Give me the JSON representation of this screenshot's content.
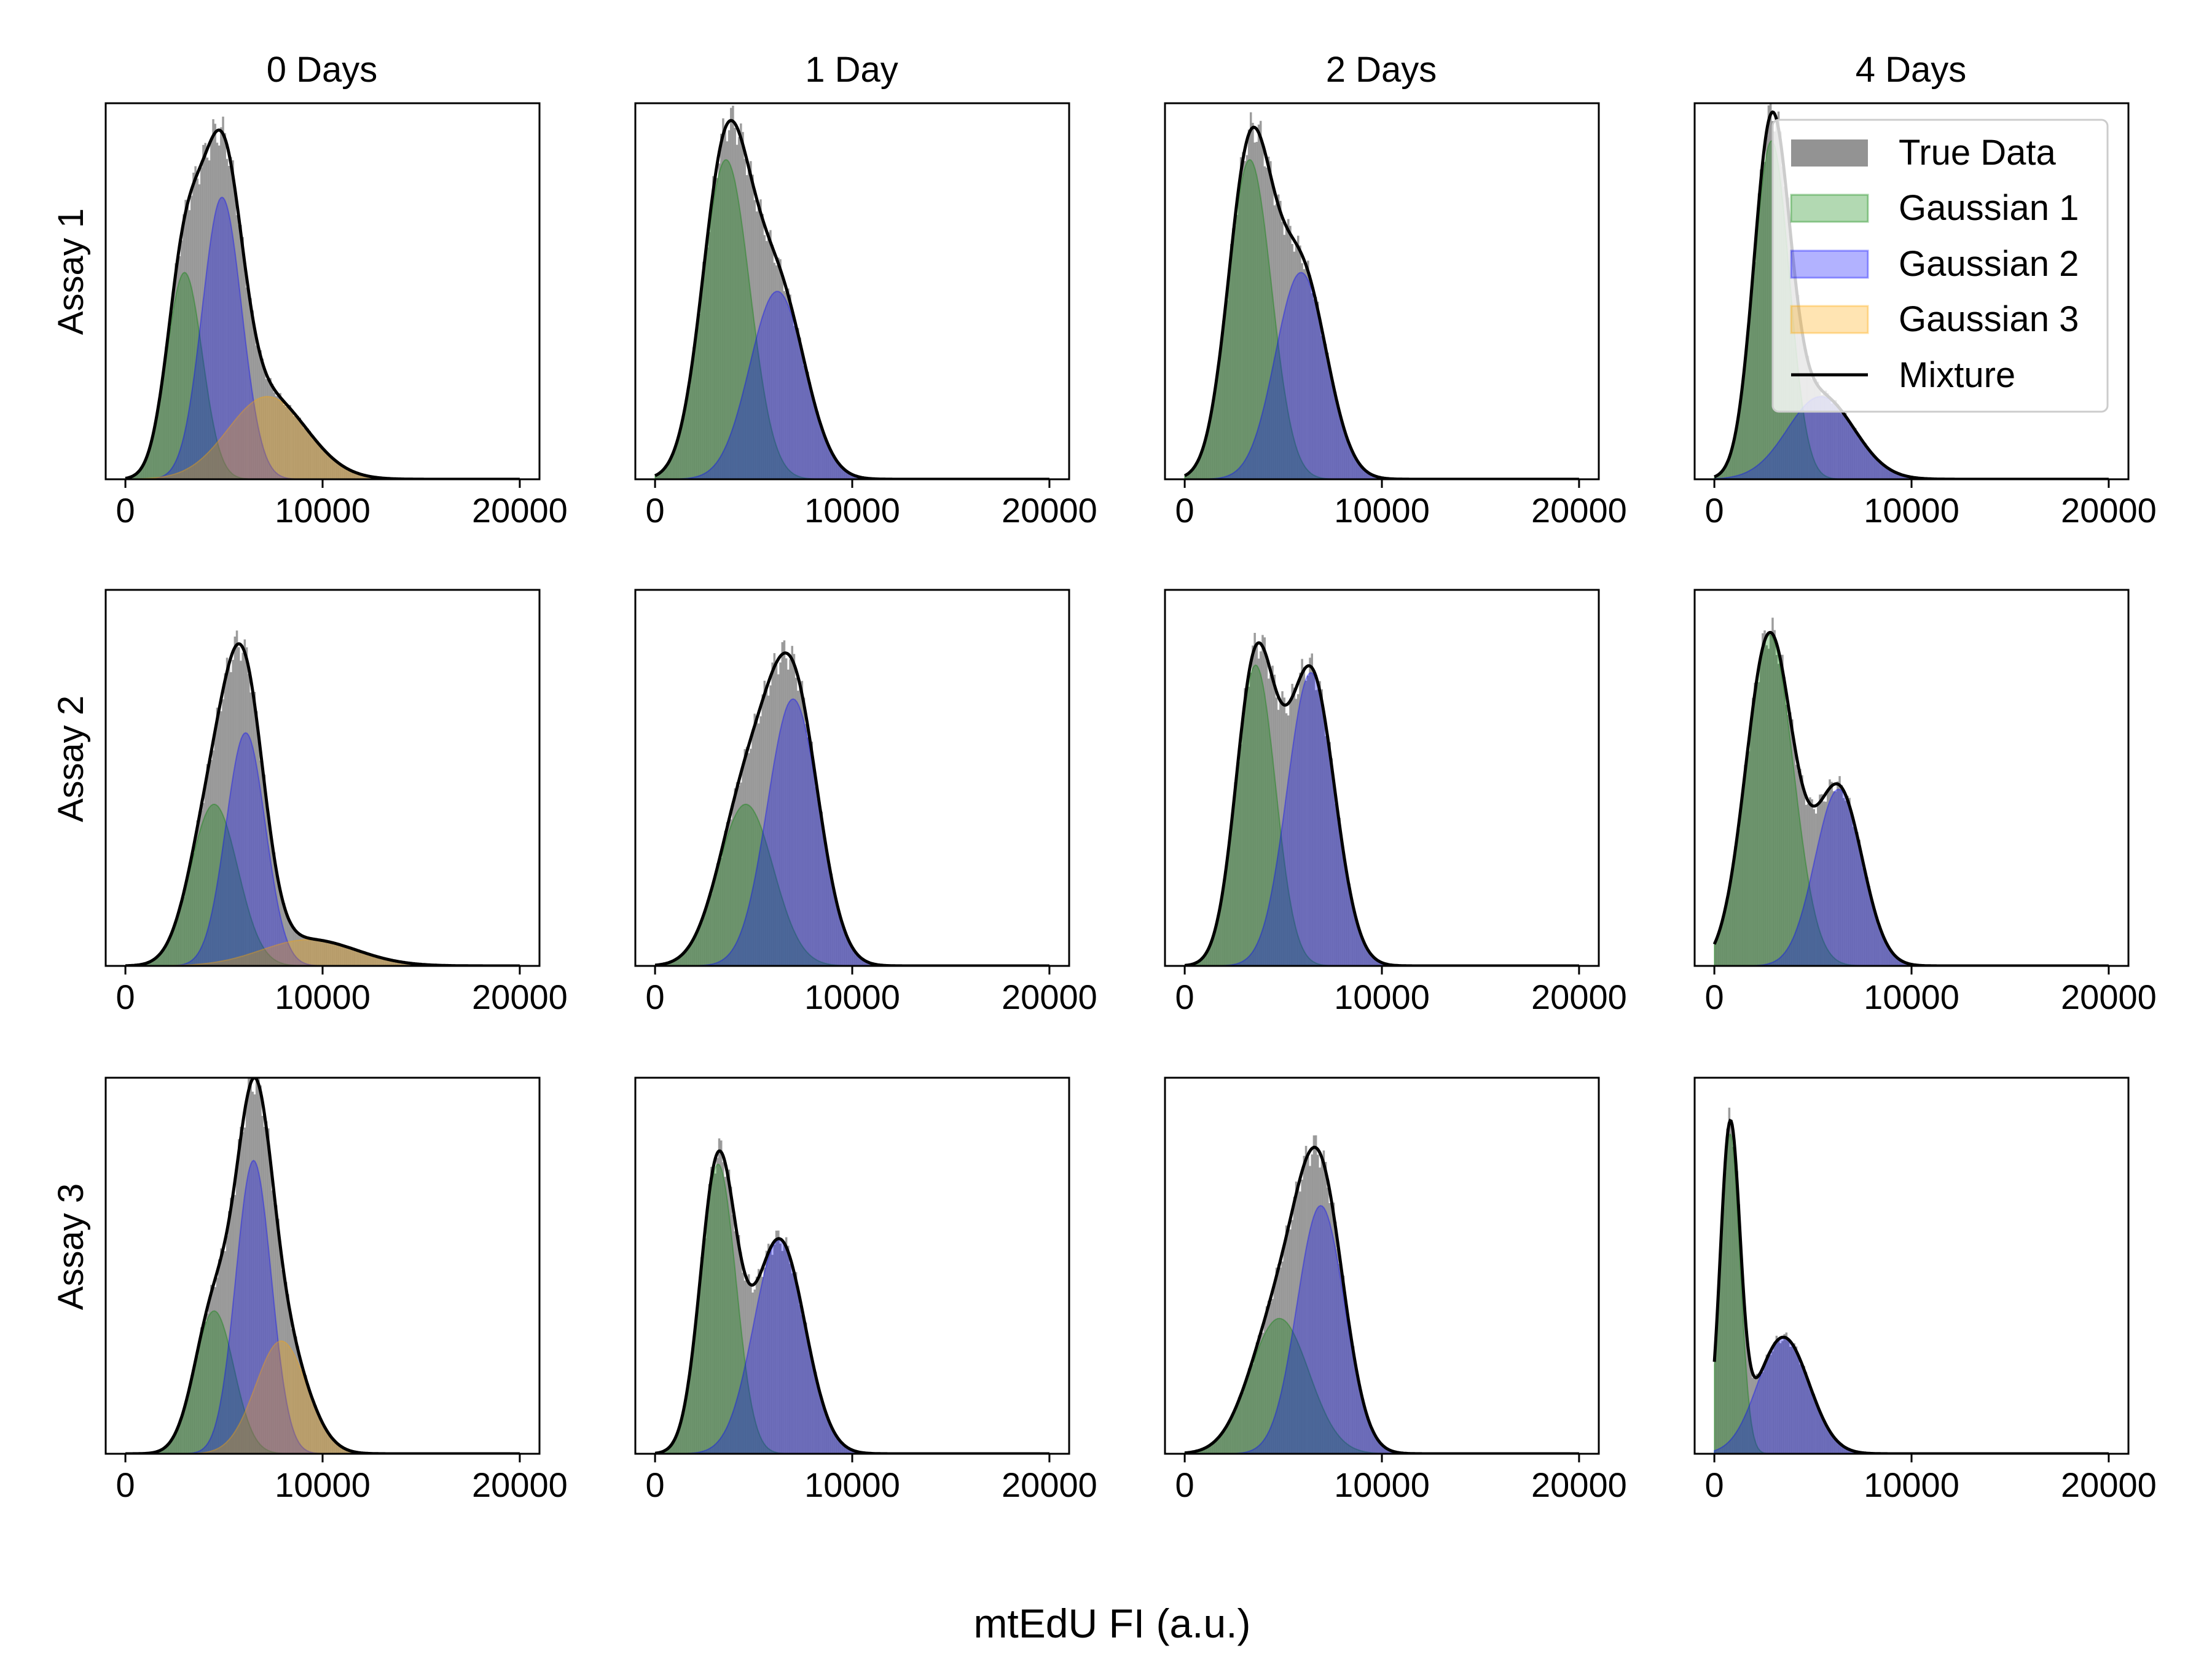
{
  "figure": {
    "xlabel": "mtEdU FI (a.u.)",
    "columns": [
      "0 Days",
      "1 Day",
      "2 Days",
      "4 Days"
    ],
    "rows": [
      "Assay 1",
      "Assay 2",
      "Assay 3"
    ]
  },
  "legend": {
    "location": "upper right of the Assay 1 / 4 Days panel",
    "entries": [
      {
        "label": "True Data",
        "color": "#808080"
      },
      {
        "label": "Gaussian 1",
        "color": "#008000"
      },
      {
        "label": "Gaussian 2",
        "color": "#0000ff"
      },
      {
        "label": "Gaussian 3",
        "color": "#ffa500"
      },
      {
        "label": "Mixture",
        "color": "#000000"
      }
    ]
  },
  "colors": {
    "true_data": "#808080",
    "gaussian_1": "#008000",
    "gaussian_2": "#0000ff",
    "gaussian_3": "#ffa500",
    "mixture": "#000000"
  },
  "chart_data": {
    "type": "area",
    "grid": false,
    "xlim": [
      -1000,
      21000
    ],
    "xticks": [
      0,
      10000,
      20000
    ],
    "y_axis": "no ticks shown; densities normalized per panel",
    "panels": [
      {
        "row": "Assay 1",
        "column": "0 Days",
        "components": [
          {
            "name": "Gaussian 1",
            "mean": 3000,
            "sd": 900,
            "peak": 0.55
          },
          {
            "name": "Gaussian 2",
            "mean": 4900,
            "sd": 1000,
            "peak": 0.75
          },
          {
            "name": "Gaussian 3",
            "mean": 7200,
            "sd": 2000,
            "peak": 0.22
          }
        ]
      },
      {
        "row": "Assay 1",
        "column": "1 Day",
        "components": [
          {
            "name": "Gaussian 1",
            "mean": 3600,
            "sd": 1200,
            "peak": 0.85
          },
          {
            "name": "Gaussian 2",
            "mean": 6200,
            "sd": 1400,
            "peak": 0.5
          }
        ]
      },
      {
        "row": "Assay 1",
        "column": "2 Days",
        "components": [
          {
            "name": "Gaussian 1",
            "mean": 3300,
            "sd": 1100,
            "peak": 0.85
          },
          {
            "name": "Gaussian 2",
            "mean": 5900,
            "sd": 1300,
            "peak": 0.55
          }
        ]
      },
      {
        "row": "Assay 1",
        "column": "4 Days",
        "components": [
          {
            "name": "Gaussian 1",
            "mean": 2900,
            "sd": 900,
            "peak": 0.9
          },
          {
            "name": "Gaussian 2",
            "mean": 5400,
            "sd": 1700,
            "peak": 0.22
          }
        ]
      },
      {
        "row": "Assay 2",
        "column": "0 Days",
        "components": [
          {
            "name": "Gaussian 1",
            "mean": 4500,
            "sd": 1200,
            "peak": 0.43
          },
          {
            "name": "Gaussian 2",
            "mean": 6100,
            "sd": 1000,
            "peak": 0.62
          },
          {
            "name": "Gaussian 3",
            "mean": 9300,
            "sd": 2400,
            "peak": 0.07
          }
        ]
      },
      {
        "row": "Assay 2",
        "column": "1 Day",
        "components": [
          {
            "name": "Gaussian 1",
            "mean": 4600,
            "sd": 1400,
            "peak": 0.43
          },
          {
            "name": "Gaussian 2",
            "mean": 7000,
            "sd": 1300,
            "peak": 0.71
          }
        ]
      },
      {
        "row": "Assay 2",
        "column": "2 Days",
        "components": [
          {
            "name": "Gaussian 1",
            "mean": 3600,
            "sd": 1000,
            "peak": 0.8
          },
          {
            "name": "Gaussian 2",
            "mean": 6400,
            "sd": 1200,
            "peak": 0.78
          }
        ]
      },
      {
        "row": "Assay 2",
        "column": "4 Days",
        "components": [
          {
            "name": "Gaussian 1",
            "mean": 2800,
            "sd": 1200,
            "peak": 0.88
          },
          {
            "name": "Gaussian 2",
            "mean": 6300,
            "sd": 1200,
            "peak": 0.47
          }
        ]
      },
      {
        "row": "Assay 3",
        "column": "0 Days",
        "components": [
          {
            "name": "Gaussian 1",
            "mean": 4500,
            "sd": 1000,
            "peak": 0.38
          },
          {
            "name": "Gaussian 2",
            "mean": 6500,
            "sd": 900,
            "peak": 0.78
          },
          {
            "name": "Gaussian 3",
            "mean": 7900,
            "sd": 1300,
            "peak": 0.3
          }
        ]
      },
      {
        "row": "Assay 3",
        "column": "1 Day",
        "components": [
          {
            "name": "Gaussian 1",
            "mean": 3200,
            "sd": 900,
            "peak": 0.77
          },
          {
            "name": "Gaussian 2",
            "mean": 6300,
            "sd": 1300,
            "peak": 0.57
          }
        ]
      },
      {
        "row": "Assay 3",
        "column": "2 Days",
        "components": [
          {
            "name": "Gaussian 1",
            "mean": 4800,
            "sd": 1500,
            "peak": 0.36
          },
          {
            "name": "Gaussian 2",
            "mean": 6900,
            "sd": 1200,
            "peak": 0.66
          }
        ]
      },
      {
        "row": "Assay 3",
        "column": "4 Days",
        "components": [
          {
            "name": "Gaussian 1",
            "mean": 800,
            "sd": 500,
            "peak": 0.85
          },
          {
            "name": "Gaussian 2",
            "mean": 3500,
            "sd": 1300,
            "peak": 0.31
          }
        ]
      }
    ]
  }
}
